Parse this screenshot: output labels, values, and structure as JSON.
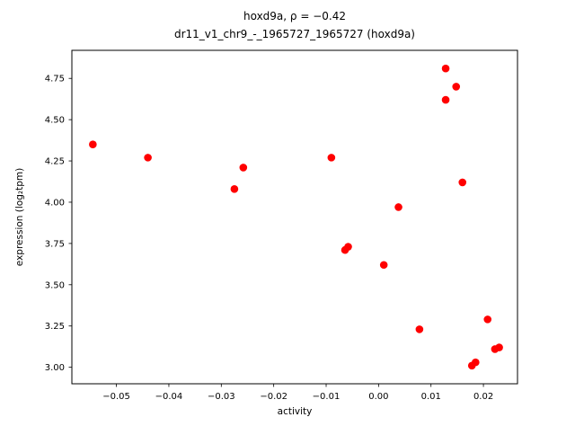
{
  "chart_data": {
    "type": "scatter",
    "title_line1": "hoxd9a, ρ = −0.42",
    "title_line2": "dr11_v1_chr9_-_1965727_1965727 (hoxd9a)",
    "xlabel": "activity",
    "ylabel": "expression (log₂tpm)",
    "marker_color": "#ff0000",
    "legend": "none",
    "grid": false,
    "xlim": [
      -0.0585,
      0.0265
    ],
    "ylim": [
      2.9,
      4.92
    ],
    "xticks": [
      {
        "value": -0.05,
        "label": "−0.05"
      },
      {
        "value": -0.04,
        "label": "−0.04"
      },
      {
        "value": -0.03,
        "label": "−0.03"
      },
      {
        "value": -0.02,
        "label": "−0.02"
      },
      {
        "value": -0.01,
        "label": "−0.01"
      },
      {
        "value": 0.0,
        "label": "0.00"
      },
      {
        "value": 0.01,
        "label": "0.01"
      },
      {
        "value": 0.02,
        "label": "0.02"
      }
    ],
    "yticks": [
      {
        "value": 3.0,
        "label": "3.00"
      },
      {
        "value": 3.25,
        "label": "3.25"
      },
      {
        "value": 3.5,
        "label": "3.50"
      },
      {
        "value": 3.75,
        "label": "3.75"
      },
      {
        "value": 4.0,
        "label": "4.00"
      },
      {
        "value": 4.25,
        "label": "4.25"
      },
      {
        "value": 4.5,
        "label": "4.50"
      },
      {
        "value": 4.75,
        "label": "4.75"
      }
    ],
    "points": [
      {
        "x": -0.0545,
        "y": 4.35
      },
      {
        "x": -0.044,
        "y": 4.27
      },
      {
        "x": -0.0275,
        "y": 4.08
      },
      {
        "x": -0.0258,
        "y": 4.21
      },
      {
        "x": -0.009,
        "y": 4.27
      },
      {
        "x": -0.0064,
        "y": 3.71
      },
      {
        "x": -0.0058,
        "y": 3.73
      },
      {
        "x": 0.001,
        "y": 3.62
      },
      {
        "x": 0.0038,
        "y": 3.97
      },
      {
        "x": 0.0078,
        "y": 3.23
      },
      {
        "x": 0.0128,
        "y": 4.81
      },
      {
        "x": 0.0128,
        "y": 4.62
      },
      {
        "x": 0.0148,
        "y": 4.7
      },
      {
        "x": 0.016,
        "y": 4.12
      },
      {
        "x": 0.0178,
        "y": 3.01
      },
      {
        "x": 0.0185,
        "y": 3.03
      },
      {
        "x": 0.0208,
        "y": 3.29
      },
      {
        "x": 0.0222,
        "y": 3.11
      },
      {
        "x": 0.023,
        "y": 3.12
      }
    ]
  }
}
